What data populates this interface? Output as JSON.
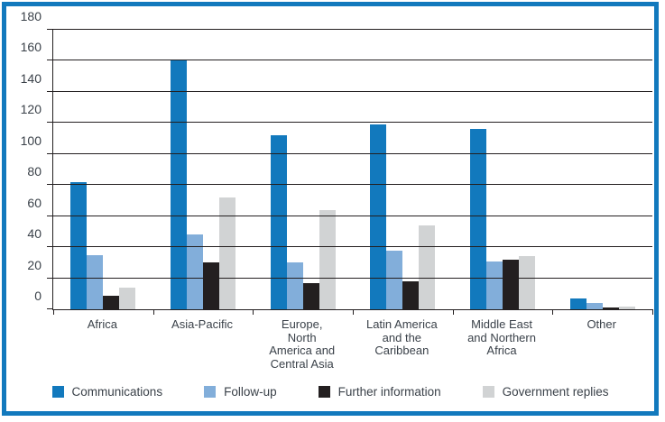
{
  "frame": {
    "border_color": "#1279bd",
    "background": "#ffffff"
  },
  "chart_data": {
    "type": "bar",
    "title": "",
    "xlabel": "",
    "ylabel": "",
    "categories": [
      "Africa",
      "Asia-Pacific",
      "Europe,\nNorth\nAmerica and\nCentral Asia",
      "Latin America\nand the\nCaribbean",
      "Middle East\nand Northern\nAfrica",
      "Other"
    ],
    "series": [
      {
        "name": "Communications",
        "color": "#1279bd",
        "values": [
          82,
          161,
          112,
          119,
          116,
          7
        ]
      },
      {
        "name": "Follow-up",
        "color": "#82aeda",
        "values": [
          35,
          48,
          30,
          38,
          31,
          4
        ]
      },
      {
        "name": "Further information",
        "color": "#231f20",
        "values": [
          9,
          30,
          17,
          18,
          32,
          1
        ]
      },
      {
        "name": "Government replies",
        "color": "#d1d3d4",
        "values": [
          14,
          72,
          64,
          54,
          34,
          2
        ]
      }
    ],
    "ylim": [
      0,
      180
    ],
    "yticks": [
      0,
      20,
      40,
      60,
      80,
      100,
      120,
      140,
      160,
      180
    ],
    "grid": true,
    "gridline_color": "#231f20",
    "text_color": "#3a4149",
    "legend_position": "bottom"
  }
}
